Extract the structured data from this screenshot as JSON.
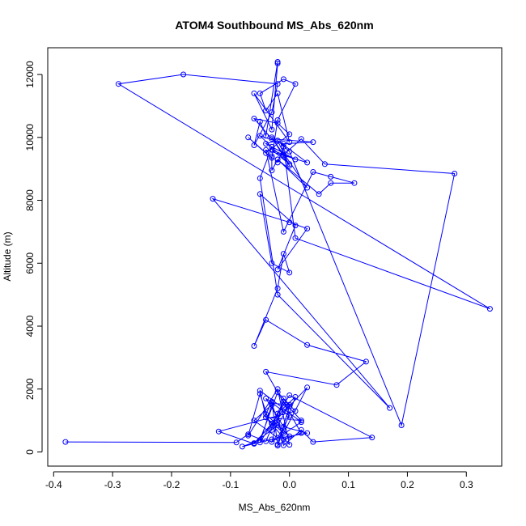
{
  "chart_data": {
    "type": "line",
    "title": "ATOM4 Southbound MS_Abs_620nm",
    "xlabel": "MS_Abs_620nm",
    "ylabel": "Altitude (m)",
    "xlim": [
      -0.41,
      0.36
    ],
    "ylim": [
      -450,
      12850
    ],
    "x_ticks": [
      -0.4,
      -0.3,
      -0.2,
      -0.1,
      0.0,
      0.1,
      0.2,
      0.3
    ],
    "x_tick_labels": [
      "-0.4",
      "-0.3",
      "-0.2",
      "-0.1",
      "0.0",
      "0.1",
      "0.2",
      "0.3"
    ],
    "y_ticks": [
      0,
      2000,
      4000,
      6000,
      8000,
      10000,
      12000
    ],
    "y_tick_labels": [
      "0",
      "2000",
      "4000",
      "6000",
      "8000",
      "10000",
      "12000"
    ],
    "grid": false,
    "legend": "none",
    "series_color": "#0000ff",
    "marker": "open-circle",
    "series": [
      {
        "x": [
          -0.38,
          -0.09,
          -0.07,
          -0.04,
          -0.02,
          -0.01,
          0.02,
          0.04,
          0.14,
          0.0,
          -0.05,
          -0.03,
          -0.06,
          -0.02,
          0.0,
          -0.04,
          -0.01,
          0.03,
          -0.03,
          -0.08,
          -0.05,
          -0.02,
          0.01,
          -0.12,
          -0.06,
          -0.03,
          -0.01,
          0.02,
          -0.04,
          0.0,
          -0.02,
          -0.07,
          -0.05,
          -0.03,
          -0.01,
          0.01,
          -0.02,
          0.0,
          -0.04,
          -0.03,
          -0.02,
          0.0,
          -0.01,
          -0.03,
          0.02,
          -0.05,
          -0.04,
          -0.01,
          0.03,
          -0.06,
          -0.02,
          0.0,
          -0.03,
          -0.01,
          0.02,
          -0.04,
          0.08,
          0.13,
          0.03,
          -0.04,
          -0.06,
          -0.02,
          -0.01,
          0.0,
          -0.03,
          -0.05,
          0.01,
          -0.02,
          0.03,
          0.0,
          -0.13,
          0.17,
          -0.02,
          -0.05,
          -0.03,
          -0.01,
          0.03,
          -0.02,
          0.05,
          0.07,
          0.11,
          0.07,
          0.04,
          -0.01,
          -0.04,
          0.03,
          -0.02,
          0.0,
          -0.03,
          -0.01,
          0.02,
          0.06,
          0.28,
          0.19,
          0.0,
          -0.02,
          -0.04,
          0.01,
          -0.03,
          0.0,
          -0.05,
          -0.01,
          0.04,
          -0.03,
          -0.06,
          -0.02,
          0.0,
          -0.04,
          -0.07,
          -0.03,
          -0.02,
          0.01,
          -0.01,
          -0.05,
          -0.04,
          -0.02,
          0.0,
          -0.06,
          -0.03,
          -0.02,
          -0.02,
          -0.04,
          -0.05,
          -0.06,
          -0.03,
          -0.02,
          -0.18,
          -0.29,
          0.34,
          0.01,
          -0.01,
          -0.02,
          -0.02,
          -0.03,
          -0.03
        ],
        "y": [
          320,
          300,
          560,
          340,
          1220,
          210,
          700,
          320,
          460,
          1800,
          300,
          1500,
          1000,
          450,
          1150,
          1700,
          800,
          600,
          400,
          170,
          380,
          1900,
          1300,
          650,
          260,
          900,
          1600,
          1000,
          1100,
          230,
          2000,
          520,
          1850,
          700,
          1400,
          1750,
          200,
          500,
          1200,
          1600,
          240,
          1450,
          1700,
          320,
          950,
          1950,
          1100,
          600,
          2050,
          280,
          850,
          1500,
          1550,
          400,
          600,
          2550,
          2130,
          2870,
          3400,
          4200,
          3370,
          5200,
          6300,
          5700,
          6000,
          8200,
          7200,
          5800,
          7100,
          7300,
          8050,
          1400,
          5000,
          8700,
          9700,
          9500,
          8400,
          9300,
          8200,
          8550,
          8550,
          8750,
          8900,
          7000,
          9600,
          9200,
          9900,
          9100,
          10000,
          9450,
          9950,
          9150,
          8850,
          850,
          9550,
          9900,
          9800,
          9300,
          9600,
          9150,
          10050,
          9800,
          9850,
          9950,
          10600,
          10450,
          10100,
          9500,
          10000,
          9350,
          10550,
          11700,
          11850,
          11400,
          10850,
          11400,
          9850,
          11400,
          10250,
          12350,
          12400,
          10050,
          10500,
          9750,
          10800,
          11700,
          12000,
          11700,
          4550,
          6800,
          9700,
          9200,
          9300,
          8950,
          9400
        ]
      }
    ]
  }
}
